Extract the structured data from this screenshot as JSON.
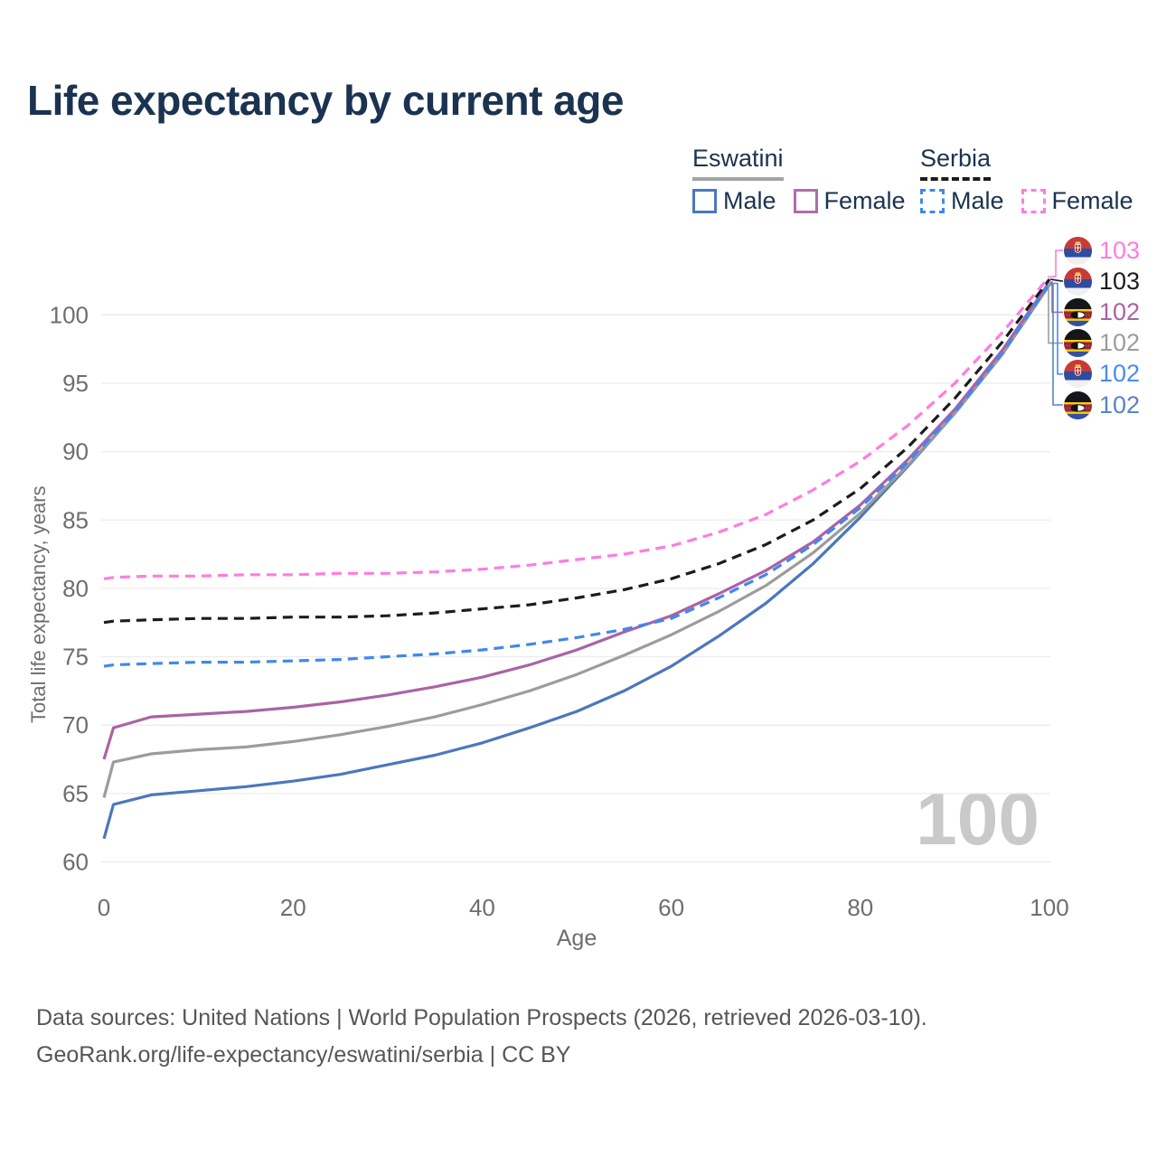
{
  "title": "Life expectancy by current age",
  "legend": {
    "groups": [
      {
        "country": "Eswatini",
        "line": "solid",
        "underline_color": "#a3a3a3",
        "items": [
          {
            "label": "Male",
            "color": "#4b77bd",
            "dashed": false
          },
          {
            "label": "Female",
            "color": "#b06dac",
            "dashed": false
          }
        ]
      },
      {
        "country": "Serbia",
        "line": "dashed",
        "underline_color": "#1c1c1c",
        "items": [
          {
            "label": "Male",
            "color": "#4187ee",
            "dashed": true
          },
          {
            "label": "Female",
            "color": "#ff7ce0",
            "dashed": true
          }
        ]
      }
    ]
  },
  "chart_data": {
    "type": "line",
    "title": "Life expectancy by current age",
    "xlabel": "Age",
    "ylabel": "Total life expectancy, years",
    "x_ticks": [
      0,
      20,
      40,
      60,
      80,
      100
    ],
    "y_ticks": [
      60,
      65,
      70,
      75,
      80,
      85,
      90,
      95,
      100
    ],
    "xlim": [
      0,
      100
    ],
    "ylim": [
      60,
      104
    ],
    "grid": "horizontal",
    "legend_position": "top-right",
    "ages": [
      0,
      1,
      5,
      10,
      15,
      20,
      25,
      30,
      35,
      40,
      45,
      50,
      55,
      60,
      65,
      70,
      75,
      80,
      85,
      90,
      95,
      100
    ],
    "series": [
      {
        "name": "Eswatini Male",
        "country": "Eswatini",
        "sex": "Male",
        "line": "solid",
        "color": "#4b77bd",
        "values": [
          61.7,
          64.2,
          64.9,
          65.2,
          65.5,
          65.9,
          66.4,
          67.1,
          67.8,
          68.7,
          69.8,
          71.0,
          72.5,
          74.3,
          76.5,
          78.9,
          81.8,
          85.2,
          88.9,
          92.8,
          97.1,
          102.2
        ],
        "end_label": "102"
      },
      {
        "name": "Eswatini",
        "country": "Eswatini",
        "sex": "Both",
        "line": "solid",
        "color": "#9c9c9c",
        "values": [
          64.7,
          67.3,
          67.9,
          68.2,
          68.4,
          68.8,
          69.3,
          69.9,
          70.6,
          71.5,
          72.5,
          73.7,
          75.1,
          76.6,
          78.3,
          80.2,
          82.6,
          85.5,
          89.0,
          92.8,
          97.1,
          102.3
        ],
        "end_label": "102"
      },
      {
        "name": "Eswatini Female",
        "country": "Eswatini",
        "sex": "Female",
        "line": "solid",
        "color": "#aa63a6",
        "values": [
          67.5,
          69.8,
          70.6,
          70.8,
          71.0,
          71.3,
          71.7,
          72.2,
          72.8,
          73.5,
          74.4,
          75.5,
          76.8,
          78.0,
          79.6,
          81.3,
          83.4,
          86.1,
          89.4,
          93.1,
          97.4,
          102.4
        ],
        "end_label": "102"
      },
      {
        "name": "Serbia Male",
        "country": "Serbia",
        "sex": "Male",
        "line": "dashed",
        "color": "#4187ee",
        "values": [
          74.3,
          74.4,
          74.5,
          74.6,
          74.6,
          74.7,
          74.8,
          75.0,
          75.2,
          75.5,
          75.9,
          76.4,
          77.0,
          77.8,
          79.3,
          81.0,
          83.2,
          85.9,
          89.2,
          92.9,
          97.2,
          102.3
        ],
        "end_label": "102"
      },
      {
        "name": "Serbia",
        "country": "Serbia",
        "sex": "Both",
        "line": "dashed",
        "color": "#1c1c1c",
        "values": [
          77.5,
          77.6,
          77.7,
          77.8,
          77.8,
          77.9,
          77.9,
          78.0,
          78.2,
          78.5,
          78.8,
          79.3,
          79.9,
          80.7,
          81.8,
          83.2,
          85.0,
          87.3,
          90.3,
          93.9,
          98.0,
          102.6
        ],
        "end_label": "103"
      },
      {
        "name": "Serbia Female",
        "country": "Serbia",
        "sex": "Female",
        "line": "dashed",
        "color": "#ff7ce0",
        "values": [
          80.7,
          80.8,
          80.9,
          80.9,
          81.0,
          81.0,
          81.1,
          81.1,
          81.2,
          81.4,
          81.7,
          82.1,
          82.5,
          83.1,
          84.1,
          85.4,
          87.2,
          89.3,
          91.9,
          95.0,
          98.7,
          102.8
        ],
        "end_label": "103"
      }
    ]
  },
  "end_labels": [
    {
      "series": "Serbia Female",
      "series_index": 5,
      "flag": "serbia",
      "value": "103",
      "color": "#ff7ce0"
    },
    {
      "series": "Serbia",
      "series_index": 4,
      "flag": "serbia",
      "value": "103",
      "color": "#1c1c1c"
    },
    {
      "series": "Eswatini Female",
      "series_index": 2,
      "flag": "eswatini",
      "value": "102",
      "color": "#aa63a6"
    },
    {
      "series": "Eswatini",
      "series_index": 1,
      "flag": "eswatini",
      "value": "102",
      "color": "#9c9c9c"
    },
    {
      "series": "Serbia Male",
      "series_index": 3,
      "flag": "serbia",
      "value": "102",
      "color": "#4b8bf0"
    },
    {
      "series": "Eswatini Male",
      "series_index": 0,
      "flag": "eswatini",
      "value": "102",
      "color": "#5a82c8"
    }
  ],
  "watermark": "100",
  "footer": {
    "line1": "Data sources: United Nations | World Population Prospects (2026, retrieved 2026-03-10).",
    "line2": "GeoRank.org/life-expectancy/eswatini/serbia | CC BY"
  }
}
